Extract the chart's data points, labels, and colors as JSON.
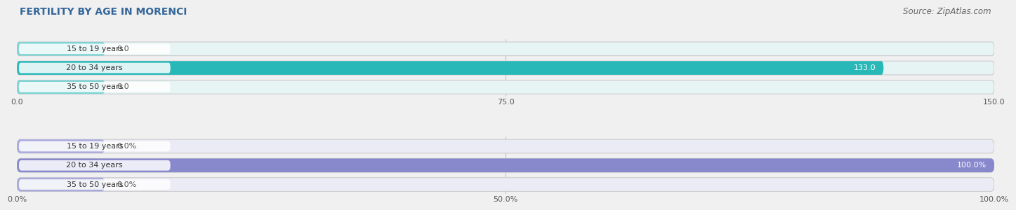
{
  "title": "FERTILITY BY AGE IN MORENCI",
  "source": "Source: ZipAtlas.com",
  "top_chart": {
    "categories": [
      "15 to 19 years",
      "20 to 34 years",
      "35 to 50 years"
    ],
    "values": [
      0.0,
      133.0,
      0.0
    ],
    "xlim": [
      0,
      150
    ],
    "xticks": [
      0.0,
      75.0,
      150.0
    ],
    "xtick_labels": [
      "0.0",
      "75.0",
      "150.0"
    ],
    "bar_color_full": "#29b8b8",
    "bar_color_zero": "#7fd4d4",
    "label_color_inside": "#ffffff",
    "label_color_outside": "#555555",
    "bar_bg_color": "#e6f4f4",
    "bar_height": 0.72
  },
  "bottom_chart": {
    "categories": [
      "15 to 19 years",
      "20 to 34 years",
      "35 to 50 years"
    ],
    "values": [
      0.0,
      100.0,
      0.0
    ],
    "xlim": [
      0,
      100
    ],
    "xticks": [
      0.0,
      50.0,
      100.0
    ],
    "xtick_labels": [
      "0.0%",
      "50.0%",
      "100.0%"
    ],
    "bar_color_full": "#8888cc",
    "bar_color_zero": "#aaaadd",
    "label_color_inside": "#ffffff",
    "label_color_outside": "#555555",
    "bar_bg_color": "#ebebf5",
    "bar_height": 0.72
  },
  "title_fontsize": 10,
  "source_fontsize": 8.5,
  "label_fontsize": 8,
  "tick_fontsize": 8,
  "category_fontsize": 8,
  "bg_color": "#f0f0f0",
  "title_color": "#336699",
  "source_color": "#666666",
  "category_color": "#333333",
  "label_pill_color": "#ffffff",
  "label_pill_alpha": 0.85
}
